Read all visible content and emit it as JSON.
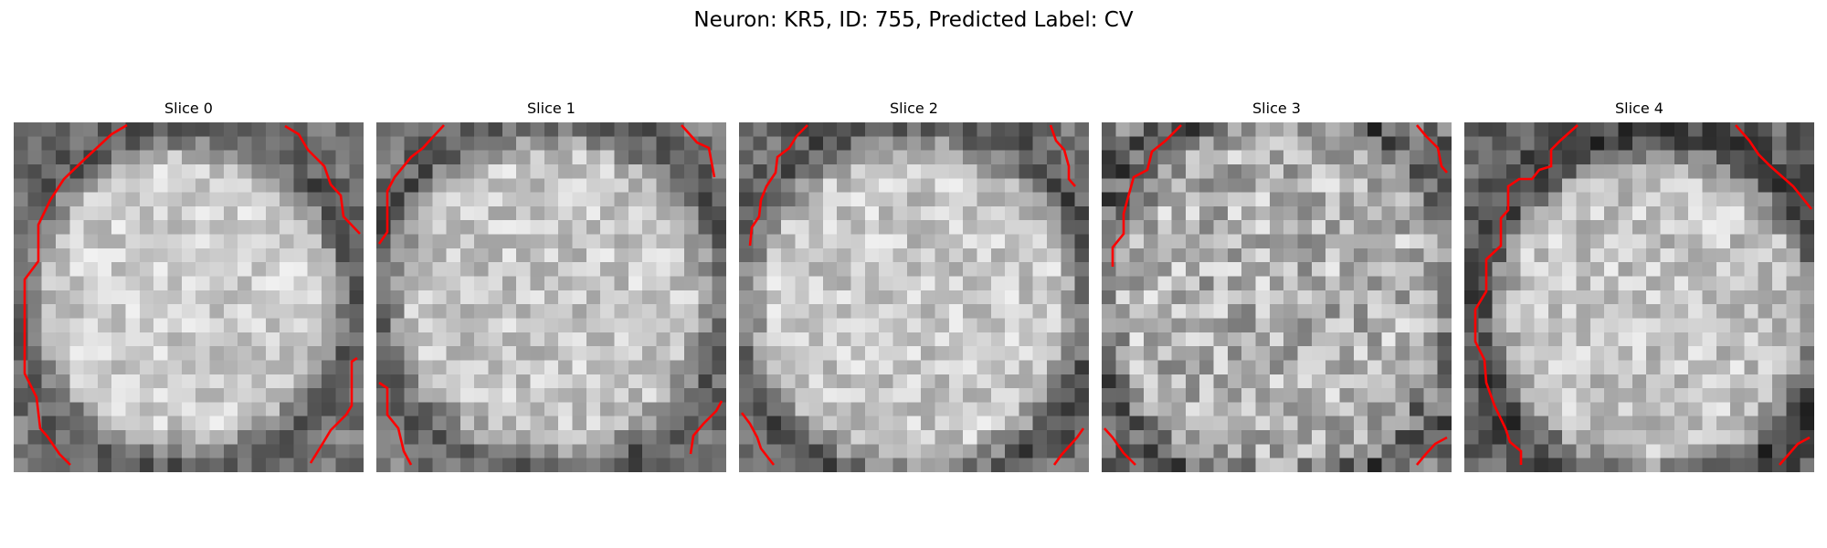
{
  "figure": {
    "title": "Neuron: KR5, ID: 755, Predicted Label: CV"
  },
  "colors": {
    "contour": "#ff0000",
    "background": "#ffffff"
  },
  "panels": [
    {
      "title": "Slice 0"
    },
    {
      "title": "Slice 1"
    },
    {
      "title": "Slice 2"
    },
    {
      "title": "Slice 3"
    },
    {
      "title": "Slice 4"
    }
  ]
}
